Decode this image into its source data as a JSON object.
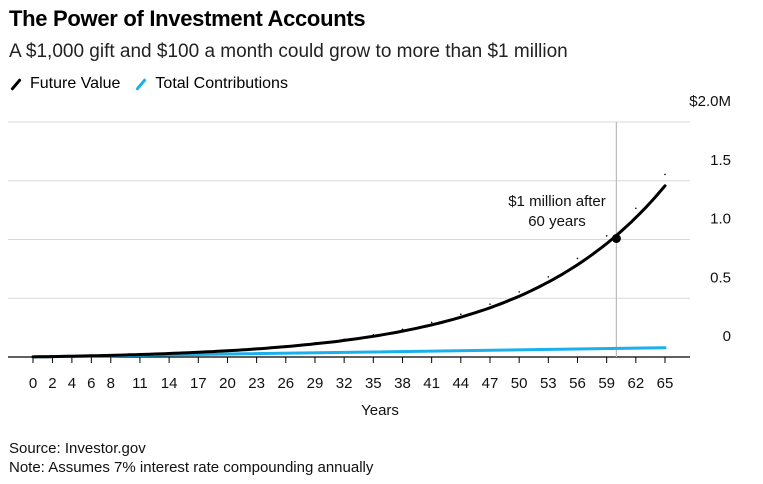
{
  "header": {
    "title": "The Power of Investment Accounts",
    "subtitle": "A $1,000 gift and $100 a month could grow to more than $1 million"
  },
  "footer": {
    "source": "Source: Investor.gov",
    "note": "Note: Assumes 7% interest rate compounding annually"
  },
  "colors": {
    "future_value": "#000000",
    "total_contributions": "#1ab0ee",
    "grid": "#d9d9d9",
    "marker_line": "#bbbbbb"
  },
  "chart_data": {
    "type": "line",
    "title": "The Power of Investment Accounts",
    "subtitle": "A $1,000 gift and $100 a month could grow to more than $1 million",
    "xlabel": "Years",
    "ylabel": "",
    "xlim": [
      0,
      65
    ],
    "ylim": [
      0,
      2.0
    ],
    "y_ticks": [
      {
        "value": 2.0,
        "label": "$2.0M"
      },
      {
        "value": 1.5,
        "label": "1.5"
      },
      {
        "value": 1.0,
        "label": "1.0"
      },
      {
        "value": 0.5,
        "label": "0.5"
      },
      {
        "value": 0,
        "label": "0"
      }
    ],
    "x_tick_labels": [
      "0",
      "2",
      "4",
      "6",
      "8",
      "11",
      "14",
      "17",
      "20",
      "23",
      "26",
      "29",
      "32",
      "35",
      "38",
      "41",
      "44",
      "47",
      "50",
      "53",
      "56",
      "59",
      "62",
      "65"
    ],
    "legend": [
      "Future Value",
      "Total Contributions"
    ],
    "legend_position": "top-left",
    "grid": true,
    "series": [
      {
        "name": "Future Value",
        "unit": "$M",
        "x": [
          0,
          2,
          4,
          6,
          8,
          11,
          14,
          17,
          20,
          23,
          26,
          29,
          32,
          35,
          38,
          41,
          44,
          47,
          50,
          53,
          56,
          59,
          62,
          65
        ],
        "values": [
          0.001,
          0.004,
          0.007,
          0.011,
          0.015,
          0.022,
          0.031,
          0.043,
          0.057,
          0.074,
          0.095,
          0.12,
          0.151,
          0.189,
          0.236,
          0.294,
          0.364,
          0.45,
          0.554,
          0.682,
          0.839,
          1.031,
          1.266,
          1.554
        ]
      },
      {
        "name": "Total Contributions",
        "unit": "$M",
        "x": [
          0,
          65
        ],
        "values": [
          0.001,
          0.079
        ]
      }
    ],
    "annotations": [
      {
        "text_lines": [
          "$1 million after",
          "60 years"
        ],
        "x": 60,
        "y": 1.0,
        "marker": "dot",
        "vertical_line": true
      }
    ]
  }
}
